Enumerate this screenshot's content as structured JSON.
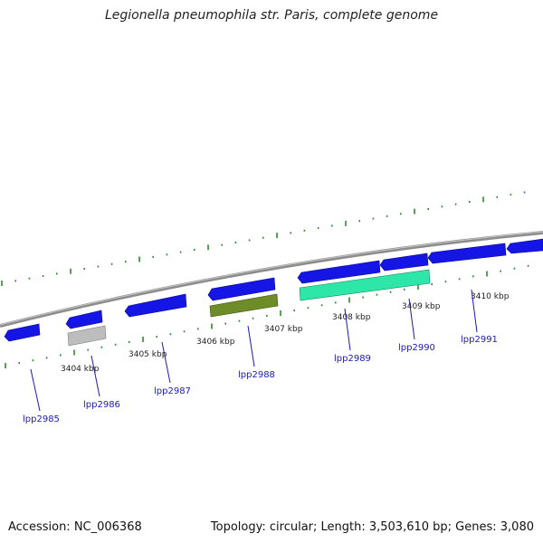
{
  "title": "Legionella pneumophila str. Paris, complete genome",
  "footer": {
    "accession": "Accession: NC_006368",
    "summary": "Topology: circular; Length: 3,503,610 bp; Genes: 3,080"
  },
  "scale_labels": [
    "3404 kbp",
    "3405 kbp",
    "3406 kbp",
    "3407 kbp",
    "3408 kbp",
    "3409 kbp",
    "3410 kbp"
  ],
  "gene_labels": [
    "lpp2985",
    "lpp2986",
    "lpp2987",
    "lpp2988",
    "lpp2989",
    "lpp2990",
    "lpp2991"
  ],
  "colors": {
    "backbone": "#8c8c8c",
    "ticks": "#2f8a2f",
    "cds": "#1515e6",
    "cds_highlight_light": "#2ee6a8",
    "cds_highlight_olive": "#6e8c28",
    "cds_grey": "#bdbdbd",
    "label": "#1a1ab8"
  }
}
